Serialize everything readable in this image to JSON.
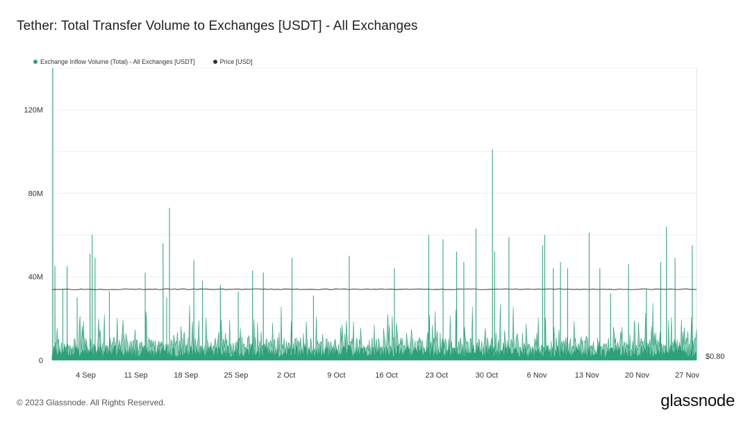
{
  "title": "Tether: Total Transfer Volume to Exchanges [USDT] - All Exchanges",
  "legend": [
    {
      "label": "Exchange Inflow Volume (Total) - All Exchanges [USDT]",
      "color": "#2ca07a"
    },
    {
      "label": "Price [USD]",
      "color": "#333333"
    }
  ],
  "footer": {
    "copyright": "© 2023 Glassnode. All Rights Reserved.",
    "brand": "glassnode"
  },
  "chart_data": {
    "type": "area",
    "y_left": {
      "ticks": [
        0,
        40000000,
        80000000,
        120000000
      ],
      "tick_labels": [
        "0",
        "40M",
        "80M",
        "120M"
      ],
      "range": [
        0,
        140000000
      ]
    },
    "y_right": {
      "tick_labels": [
        "$0.80"
      ]
    },
    "x_tick_labels": [
      "4 Sep",
      "11 Sep",
      "18 Sep",
      "25 Sep",
      "2 Oct",
      "9 Oct",
      "16 Oct",
      "23 Oct",
      "30 Oct",
      "6 Nov",
      "13 Nov",
      "20 Nov",
      "27 Nov"
    ],
    "x_range_days": [
      0,
      90
    ],
    "x_tick_days": [
      4.7,
      11.7,
      18.7,
      25.7,
      32.7,
      39.7,
      46.7,
      53.7,
      60.7,
      67.7,
      74.7,
      81.7,
      88.7
    ],
    "grid": true,
    "series": [
      {
        "name": "Exchange Inflow Volume (Total) - All Exchanges [USDT]",
        "color": "#2ca07a",
        "spikes_day_value": [
          [
            0.1,
            140000000
          ],
          [
            0.4,
            45000000
          ],
          [
            1.5,
            34000000
          ],
          [
            2.1,
            45000000
          ],
          [
            3.5,
            30000000
          ],
          [
            5.3,
            51000000
          ],
          [
            5.6,
            60000000
          ],
          [
            6.0,
            49000000
          ],
          [
            8.0,
            33000000
          ],
          [
            13.0,
            42000000
          ],
          [
            15.5,
            56000000
          ],
          [
            16.0,
            30000000
          ],
          [
            16.4,
            73000000
          ],
          [
            19.8,
            48000000
          ],
          [
            21.0,
            38000000
          ],
          [
            23.5,
            36000000
          ],
          [
            26.0,
            33000000
          ],
          [
            28.0,
            43000000
          ],
          [
            29.5,
            42000000
          ],
          [
            33.5,
            49000000
          ],
          [
            36.5,
            31000000
          ],
          [
            41.5,
            50000000
          ],
          [
            47.8,
            44000000
          ],
          [
            52.6,
            60000000
          ],
          [
            54.6,
            58000000
          ],
          [
            56.5,
            52000000
          ],
          [
            57.5,
            47000000
          ],
          [
            59.2,
            63000000
          ],
          [
            61.5,
            101000000
          ],
          [
            61.8,
            52000000
          ],
          [
            63.8,
            59000000
          ],
          [
            68.5,
            55000000
          ],
          [
            68.8,
            60000000
          ],
          [
            70.0,
            44000000
          ],
          [
            71.0,
            47000000
          ],
          [
            72.0,
            44000000
          ],
          [
            75.0,
            61000000
          ],
          [
            76.5,
            44000000
          ],
          [
            78.0,
            32000000
          ],
          [
            80.5,
            46000000
          ],
          [
            83.0,
            34000000
          ],
          [
            85.0,
            47000000
          ],
          [
            85.8,
            64000000
          ],
          [
            87.0,
            49000000
          ],
          [
            89.4,
            55000000
          ]
        ]
      },
      {
        "name": "Price [USD]",
        "color": "#333333",
        "constant_value_label": "$0.80"
      }
    ]
  }
}
